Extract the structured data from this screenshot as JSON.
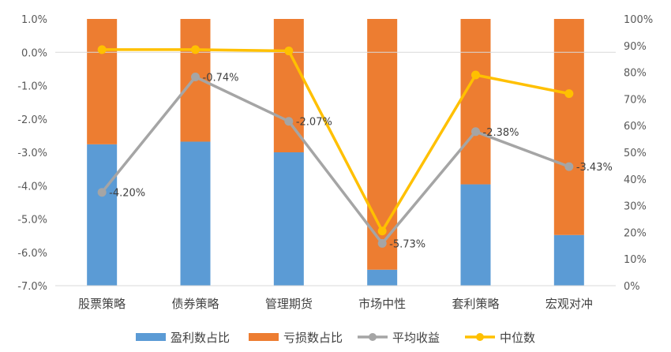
{
  "chart_data": {
    "type": "bar",
    "categories": [
      "股票策略",
      "债券策略",
      "管理期货",
      "市场中性",
      "套利策略",
      "宏观对冲"
    ],
    "left_axis": {
      "ylim": [
        -7.0,
        1.0
      ],
      "ticks": [
        "1.0%",
        "0.0%",
        "-1.0%",
        "-2.0%",
        "-3.0%",
        "-4.0%",
        "-5.0%",
        "-6.0%",
        "-7.0%"
      ]
    },
    "right_axis": {
      "ylim": [
        0,
        100
      ],
      "ticks": [
        "100%",
        "90%",
        "80%",
        "70%",
        "60%",
        "50%",
        "40%",
        "30%",
        "20%",
        "10%",
        "0%"
      ]
    },
    "series": [
      {
        "name": "盈利数占比",
        "type": "stacked-bar",
        "axis": "right",
        "color": "#5B9BD5",
        "values": [
          53,
          54,
          50,
          6,
          38,
          19
        ]
      },
      {
        "name": "亏损数占比",
        "type": "stacked-bar",
        "axis": "right",
        "color": "#ED7D31",
        "values": [
          47,
          46,
          50,
          94,
          62,
          81
        ]
      },
      {
        "name": "平均收益",
        "type": "line",
        "axis": "left",
        "color": "#A5A5A5",
        "values": [
          -4.2,
          -0.74,
          -2.07,
          -5.73,
          -2.38,
          -3.43
        ],
        "labels": [
          "-4.20%",
          "-0.74%",
          "-2.07%",
          "-5.73%",
          "-2.38%",
          "-3.43%"
        ]
      },
      {
        "name": "中位数",
        "type": "line",
        "axis": "right",
        "color": "#FFC000",
        "values": [
          88.5,
          88.5,
          88,
          20.5,
          79,
          72
        ]
      }
    ],
    "grid": false,
    "legend": "bottom"
  }
}
